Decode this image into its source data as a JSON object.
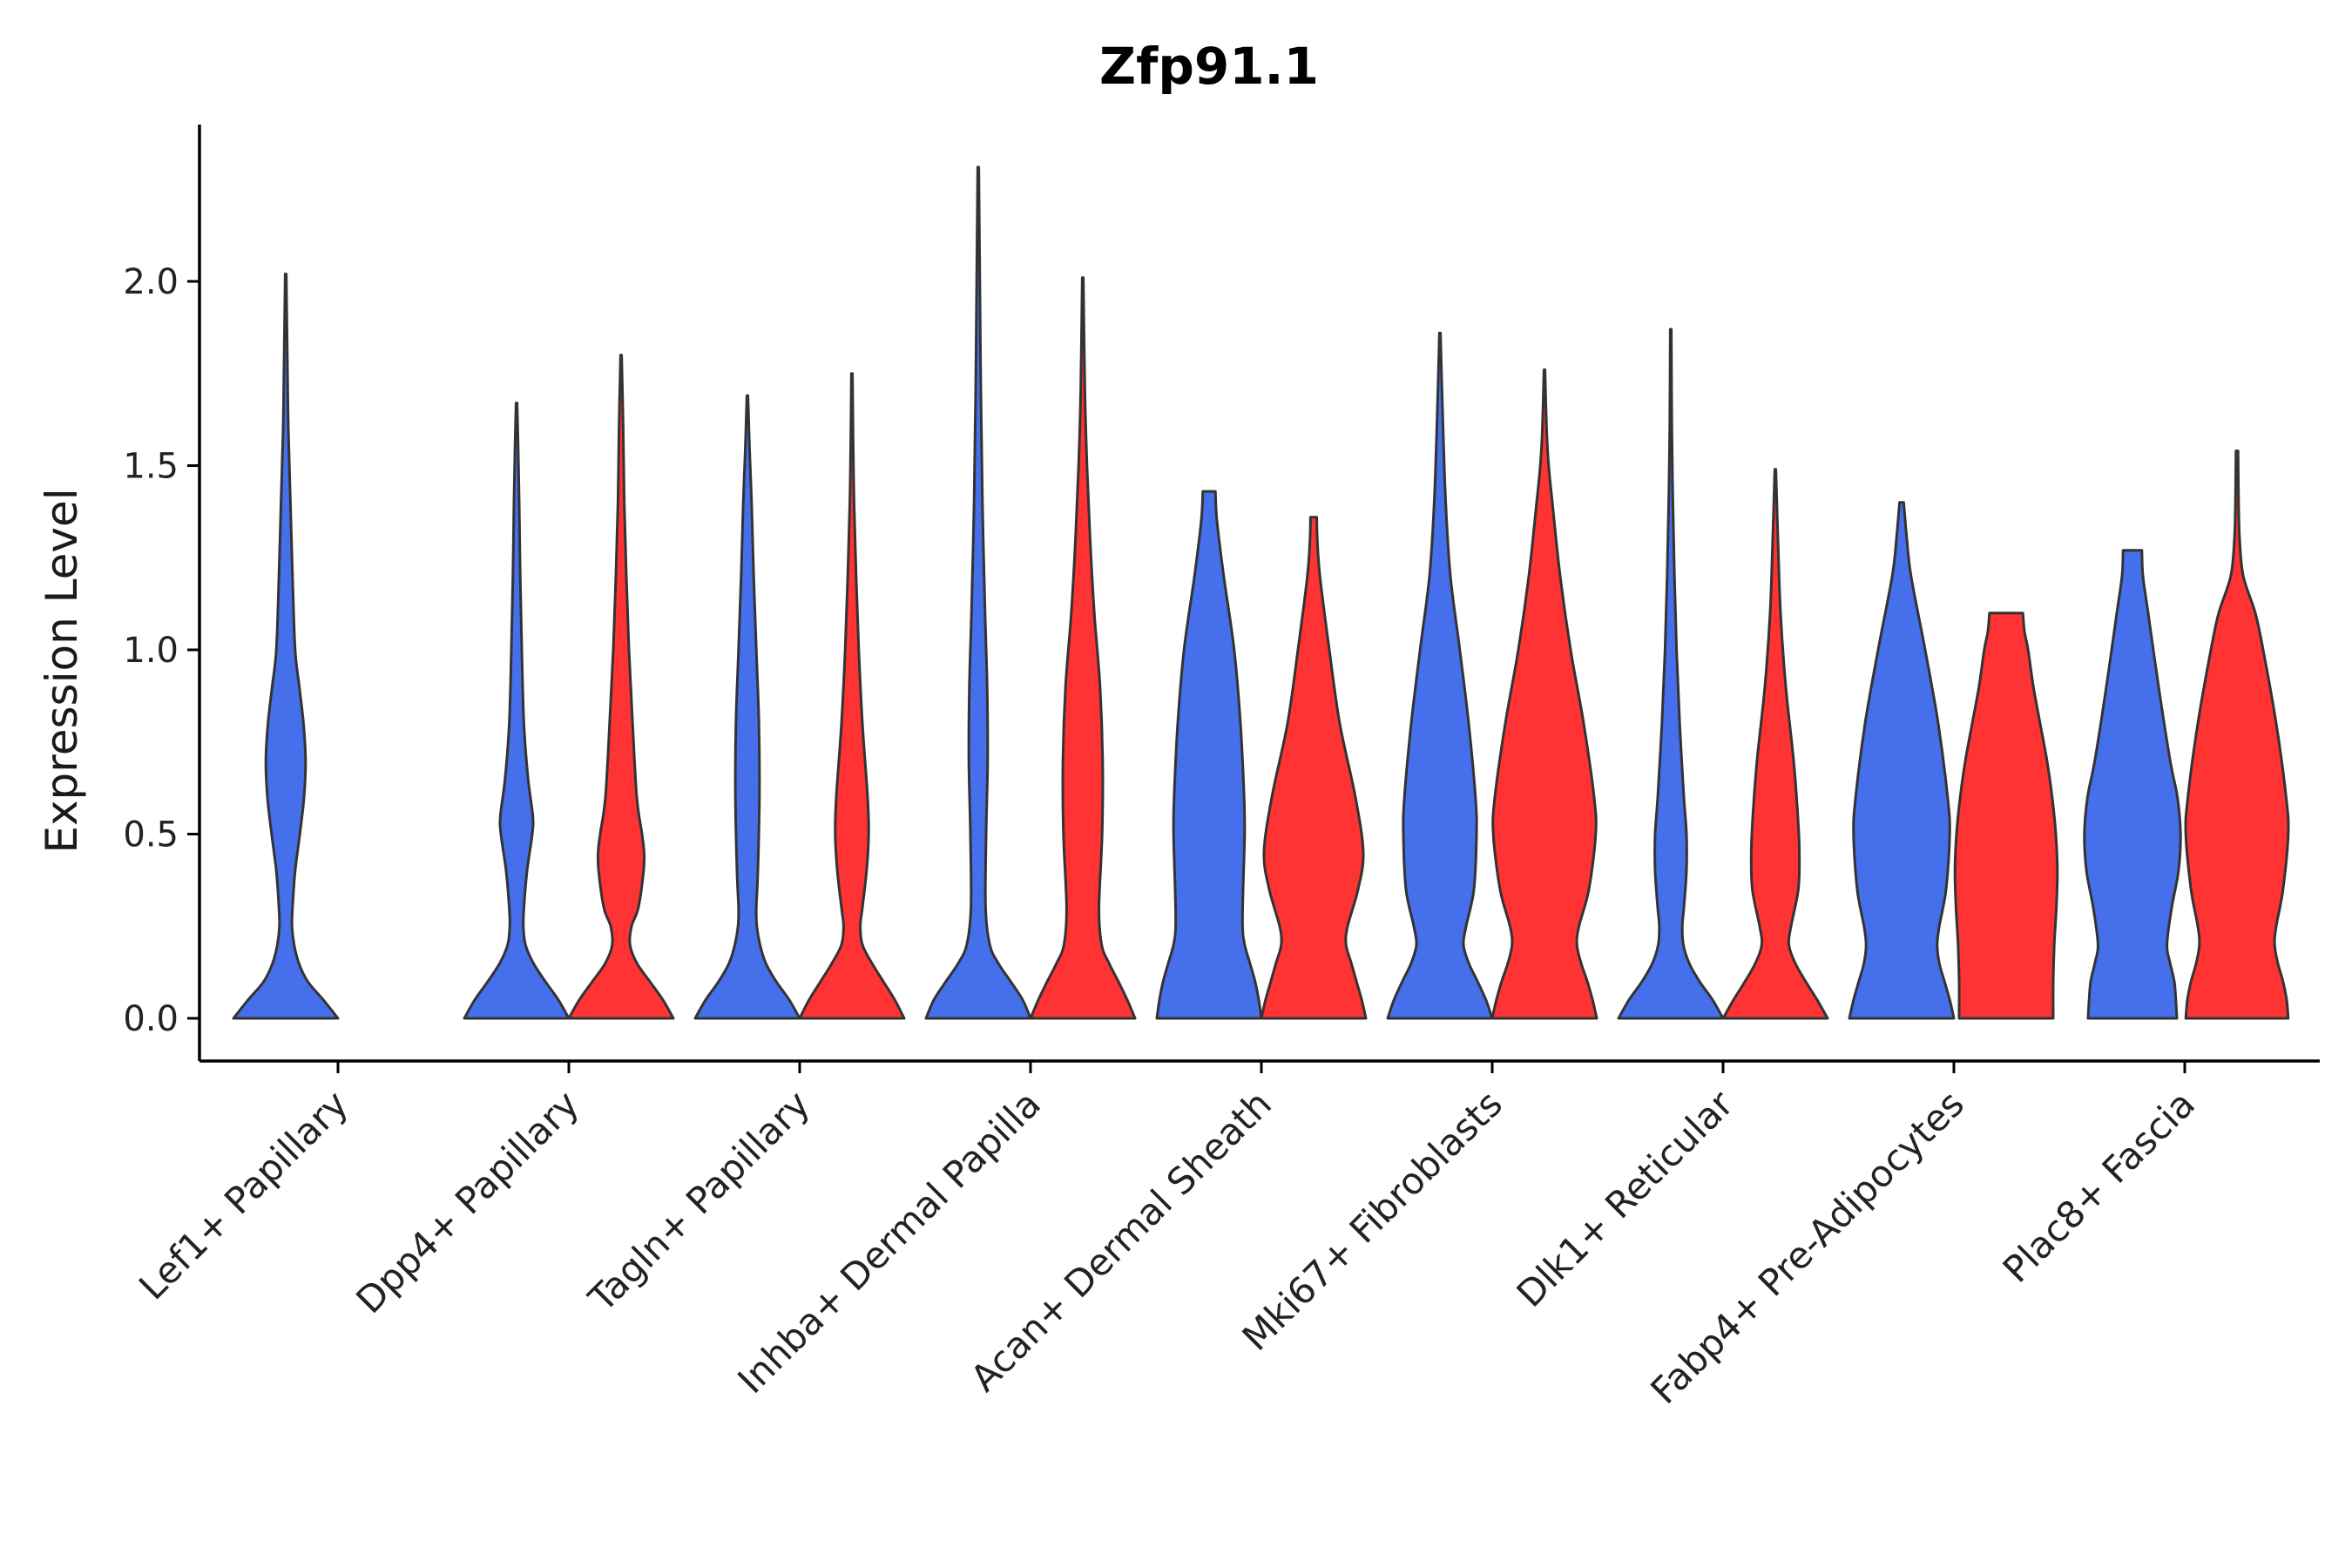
{
  "chart_data": {
    "type": "violin",
    "title": "Zfp91.1",
    "ylabel": "Expression Level",
    "xlabel": "",
    "ylim": [
      -0.12,
      2.42
    ],
    "yticks": [
      0.0,
      0.5,
      1.0,
      1.5,
      2.0
    ],
    "ytick_labels": [
      "0.0",
      "0.5",
      "1.0",
      "1.5",
      "2.0"
    ],
    "legend": "none",
    "grid": false,
    "series_colors": {
      "group1": "#4670EB",
      "group2": "#FF3333"
    },
    "categories": [
      "Lef1+ Papillary",
      "Dpp4+ Papillary",
      "Tagln+ Papillary",
      "Inhba+ Dermal Papilla",
      "Acan+ Dermal Sheath",
      "Mki67+ Fibroblasts",
      "Dlk1+ Reticular",
      "Fabp4+ Pre-Adipocytes",
      "Plac8+ Fascia"
    ],
    "violins": [
      {
        "category": 0,
        "group": "group1",
        "color": "#4670EB",
        "profile": [
          [
            0,
            1.0
          ],
          [
            0.05,
            0.72
          ],
          [
            0.1,
            0.42
          ],
          [
            0.15,
            0.25
          ],
          [
            0.2,
            0.16
          ],
          [
            0.25,
            0.12
          ],
          [
            0.3,
            0.13
          ],
          [
            0.4,
            0.18
          ],
          [
            0.5,
            0.27
          ],
          [
            0.6,
            0.35
          ],
          [
            0.7,
            0.38
          ],
          [
            0.8,
            0.34
          ],
          [
            0.9,
            0.26
          ],
          [
            1.0,
            0.18
          ],
          [
            1.2,
            0.13
          ],
          [
            1.4,
            0.09
          ],
          [
            1.6,
            0.05
          ],
          [
            1.8,
            0.03
          ],
          [
            2.02,
            0.01
          ]
        ]
      },
      {
        "category": 1,
        "group": "group1",
        "color": "#4670EB",
        "profile": [
          [
            0,
            1.0
          ],
          [
            0.05,
            0.8
          ],
          [
            0.1,
            0.55
          ],
          [
            0.15,
            0.32
          ],
          [
            0.2,
            0.17
          ],
          [
            0.25,
            0.13
          ],
          [
            0.3,
            0.14
          ],
          [
            0.4,
            0.2
          ],
          [
            0.5,
            0.3
          ],
          [
            0.55,
            0.31
          ],
          [
            0.65,
            0.22
          ],
          [
            0.8,
            0.14
          ],
          [
            1.0,
            0.1
          ],
          [
            1.2,
            0.07
          ],
          [
            1.4,
            0.05
          ],
          [
            1.55,
            0.03
          ],
          [
            1.67,
            0.01
          ]
        ]
      },
      {
        "category": 1,
        "group": "group2",
        "color": "#FF3333",
        "profile": [
          [
            0,
            1.0
          ],
          [
            0.05,
            0.8
          ],
          [
            0.1,
            0.55
          ],
          [
            0.15,
            0.3
          ],
          [
            0.2,
            0.17
          ],
          [
            0.25,
            0.2
          ],
          [
            0.3,
            0.33
          ],
          [
            0.4,
            0.43
          ],
          [
            0.45,
            0.44
          ],
          [
            0.5,
            0.4
          ],
          [
            0.6,
            0.3
          ],
          [
            0.8,
            0.22
          ],
          [
            1.0,
            0.15
          ],
          [
            1.2,
            0.1
          ],
          [
            1.4,
            0.06
          ],
          [
            1.6,
            0.04
          ],
          [
            1.8,
            0.01
          ]
        ]
      },
      {
        "category": 2,
        "group": "group1",
        "color": "#4670EB",
        "profile": [
          [
            0,
            1.0
          ],
          [
            0.05,
            0.8
          ],
          [
            0.1,
            0.55
          ],
          [
            0.15,
            0.35
          ],
          [
            0.2,
            0.24
          ],
          [
            0.25,
            0.18
          ],
          [
            0.3,
            0.17
          ],
          [
            0.4,
            0.2
          ],
          [
            0.6,
            0.23
          ],
          [
            0.8,
            0.22
          ],
          [
            1.0,
            0.17
          ],
          [
            1.2,
            0.12
          ],
          [
            1.4,
            0.08
          ],
          [
            1.55,
            0.04
          ],
          [
            1.69,
            0.01
          ]
        ]
      },
      {
        "category": 2,
        "group": "group2",
        "color": "#FF3333",
        "profile": [
          [
            0,
            1.0
          ],
          [
            0.05,
            0.82
          ],
          [
            0.1,
            0.6
          ],
          [
            0.15,
            0.38
          ],
          [
            0.2,
            0.2
          ],
          [
            0.25,
            0.16
          ],
          [
            0.3,
            0.2
          ],
          [
            0.4,
            0.28
          ],
          [
            0.5,
            0.32
          ],
          [
            0.6,
            0.3
          ],
          [
            0.8,
            0.2
          ],
          [
            1.0,
            0.13
          ],
          [
            1.2,
            0.08
          ],
          [
            1.4,
            0.04
          ],
          [
            1.6,
            0.02
          ],
          [
            1.75,
            0.01
          ]
        ]
      },
      {
        "category": 3,
        "group": "group1",
        "color": "#4670EB",
        "profile": [
          [
            0,
            1.0
          ],
          [
            0.05,
            0.85
          ],
          [
            0.1,
            0.62
          ],
          [
            0.15,
            0.38
          ],
          [
            0.2,
            0.22
          ],
          [
            0.3,
            0.14
          ],
          [
            0.5,
            0.15
          ],
          [
            0.7,
            0.18
          ],
          [
            0.9,
            0.17
          ],
          [
            1.1,
            0.13
          ],
          [
            1.4,
            0.08
          ],
          [
            1.7,
            0.05
          ],
          [
            2.0,
            0.03
          ],
          [
            2.31,
            0.01
          ]
        ]
      },
      {
        "category": 3,
        "group": "group2",
        "color": "#FF3333",
        "profile": [
          [
            0,
            1.0
          ],
          [
            0.05,
            0.85
          ],
          [
            0.1,
            0.68
          ],
          [
            0.15,
            0.5
          ],
          [
            0.2,
            0.36
          ],
          [
            0.3,
            0.31
          ],
          [
            0.5,
            0.37
          ],
          [
            0.7,
            0.38
          ],
          [
            0.9,
            0.33
          ],
          [
            1.1,
            0.22
          ],
          [
            1.3,
            0.14
          ],
          [
            1.5,
            0.08
          ],
          [
            1.7,
            0.04
          ],
          [
            2.01,
            0.01
          ]
        ]
      },
      {
        "category": 4,
        "group": "group1",
        "color": "#4670EB",
        "profile": [
          [
            0,
            1.0
          ],
          [
            0.05,
            0.95
          ],
          [
            0.1,
            0.88
          ],
          [
            0.15,
            0.78
          ],
          [
            0.2,
            0.68
          ],
          [
            0.25,
            0.64
          ],
          [
            0.35,
            0.65
          ],
          [
            0.5,
            0.68
          ],
          [
            0.6,
            0.67
          ],
          [
            0.8,
            0.6
          ],
          [
            1.0,
            0.48
          ],
          [
            1.2,
            0.28
          ],
          [
            1.35,
            0.15
          ],
          [
            1.43,
            0.12
          ]
        ]
      },
      {
        "category": 4,
        "group": "group2",
        "color": "#FF3333",
        "profile": [
          [
            0,
            1.0
          ],
          [
            0.05,
            0.92
          ],
          [
            0.1,
            0.82
          ],
          [
            0.15,
            0.72
          ],
          [
            0.2,
            0.62
          ],
          [
            0.25,
            0.65
          ],
          [
            0.35,
            0.85
          ],
          [
            0.45,
            0.95
          ],
          [
            0.6,
            0.8
          ],
          [
            0.8,
            0.5
          ],
          [
            1.0,
            0.3
          ],
          [
            1.2,
            0.12
          ],
          [
            1.3,
            0.07
          ],
          [
            1.36,
            0.06
          ]
        ]
      },
      {
        "category": 5,
        "group": "group1",
        "color": "#4670EB",
        "profile": [
          [
            0,
            1.0
          ],
          [
            0.05,
            0.88
          ],
          [
            0.1,
            0.72
          ],
          [
            0.15,
            0.55
          ],
          [
            0.2,
            0.45
          ],
          [
            0.25,
            0.5
          ],
          [
            0.35,
            0.65
          ],
          [
            0.5,
            0.7
          ],
          [
            0.6,
            0.68
          ],
          [
            0.8,
            0.55
          ],
          [
            1.0,
            0.38
          ],
          [
            1.2,
            0.2
          ],
          [
            1.4,
            0.11
          ],
          [
            1.6,
            0.06
          ],
          [
            1.75,
            0.03
          ],
          [
            1.86,
            0.01
          ]
        ]
      },
      {
        "category": 5,
        "group": "group2",
        "color": "#FF3333",
        "profile": [
          [
            0,
            1.0
          ],
          [
            0.05,
            0.92
          ],
          [
            0.1,
            0.82
          ],
          [
            0.15,
            0.7
          ],
          [
            0.2,
            0.62
          ],
          [
            0.25,
            0.66
          ],
          [
            0.35,
            0.85
          ],
          [
            0.5,
            0.98
          ],
          [
            0.6,
            0.95
          ],
          [
            0.8,
            0.75
          ],
          [
            1.0,
            0.5
          ],
          [
            1.2,
            0.3
          ],
          [
            1.4,
            0.15
          ],
          [
            1.5,
            0.08
          ],
          [
            1.6,
            0.04
          ],
          [
            1.76,
            0.01
          ]
        ]
      },
      {
        "category": 6,
        "group": "group1",
        "color": "#4670EB",
        "profile": [
          [
            0,
            1.0
          ],
          [
            0.05,
            0.8
          ],
          [
            0.1,
            0.55
          ],
          [
            0.15,
            0.35
          ],
          [
            0.2,
            0.24
          ],
          [
            0.25,
            0.22
          ],
          [
            0.3,
            0.25
          ],
          [
            0.4,
            0.3
          ],
          [
            0.5,
            0.3
          ],
          [
            0.6,
            0.25
          ],
          [
            0.8,
            0.17
          ],
          [
            1.0,
            0.11
          ],
          [
            1.2,
            0.07
          ],
          [
            1.4,
            0.04
          ],
          [
            1.6,
            0.02
          ],
          [
            1.87,
            0.01
          ]
        ]
      },
      {
        "category": 6,
        "group": "group2",
        "color": "#FF3333",
        "profile": [
          [
            0,
            1.0
          ],
          [
            0.05,
            0.8
          ],
          [
            0.1,
            0.58
          ],
          [
            0.15,
            0.38
          ],
          [
            0.2,
            0.26
          ],
          [
            0.25,
            0.3
          ],
          [
            0.35,
            0.44
          ],
          [
            0.45,
            0.46
          ],
          [
            0.55,
            0.43
          ],
          [
            0.7,
            0.35
          ],
          [
            0.9,
            0.2
          ],
          [
            1.1,
            0.1
          ],
          [
            1.3,
            0.05
          ],
          [
            1.49,
            0.01
          ]
        ]
      },
      {
        "category": 7,
        "group": "group1",
        "color": "#4670EB",
        "profile": [
          [
            0,
            1.0
          ],
          [
            0.05,
            0.92
          ],
          [
            0.1,
            0.82
          ],
          [
            0.15,
            0.72
          ],
          [
            0.2,
            0.68
          ],
          [
            0.25,
            0.72
          ],
          [
            0.35,
            0.85
          ],
          [
            0.5,
            0.92
          ],
          [
            0.6,
            0.88
          ],
          [
            0.8,
            0.7
          ],
          [
            1.0,
            0.45
          ],
          [
            1.2,
            0.18
          ],
          [
            1.3,
            0.1
          ],
          [
            1.4,
            0.04
          ]
        ]
      },
      {
        "category": 7,
        "group": "group2",
        "color": "#FF3333",
        "profile": [
          [
            0,
            0.9
          ],
          [
            0.1,
            0.9
          ],
          [
            0.2,
            0.92
          ],
          [
            0.3,
            0.96
          ],
          [
            0.4,
            0.98
          ],
          [
            0.5,
            0.95
          ],
          [
            0.6,
            0.88
          ],
          [
            0.7,
            0.78
          ],
          [
            0.8,
            0.65
          ],
          [
            0.9,
            0.52
          ],
          [
            1.0,
            0.42
          ],
          [
            1.05,
            0.35
          ],
          [
            1.1,
            0.32
          ]
        ]
      },
      {
        "category": 8,
        "group": "group1",
        "color": "#4670EB",
        "profile": [
          [
            0,
            0.85
          ],
          [
            0.05,
            0.83
          ],
          [
            0.1,
            0.8
          ],
          [
            0.15,
            0.72
          ],
          [
            0.2,
            0.66
          ],
          [
            0.3,
            0.75
          ],
          [
            0.4,
            0.88
          ],
          [
            0.5,
            0.92
          ],
          [
            0.6,
            0.86
          ],
          [
            0.7,
            0.72
          ],
          [
            0.9,
            0.5
          ],
          [
            1.1,
            0.3
          ],
          [
            1.2,
            0.2
          ],
          [
            1.27,
            0.18
          ]
        ]
      },
      {
        "category": 8,
        "group": "group2",
        "color": "#FF3333",
        "profile": [
          [
            0,
            0.98
          ],
          [
            0.05,
            0.95
          ],
          [
            0.1,
            0.88
          ],
          [
            0.15,
            0.78
          ],
          [
            0.2,
            0.72
          ],
          [
            0.25,
            0.75
          ],
          [
            0.35,
            0.88
          ],
          [
            0.5,
            0.98
          ],
          [
            0.6,
            0.94
          ],
          [
            0.8,
            0.75
          ],
          [
            1.0,
            0.5
          ],
          [
            1.1,
            0.35
          ],
          [
            1.2,
            0.12
          ],
          [
            1.3,
            0.05
          ],
          [
            1.4,
            0.03
          ],
          [
            1.54,
            0.02
          ]
        ]
      }
    ]
  }
}
